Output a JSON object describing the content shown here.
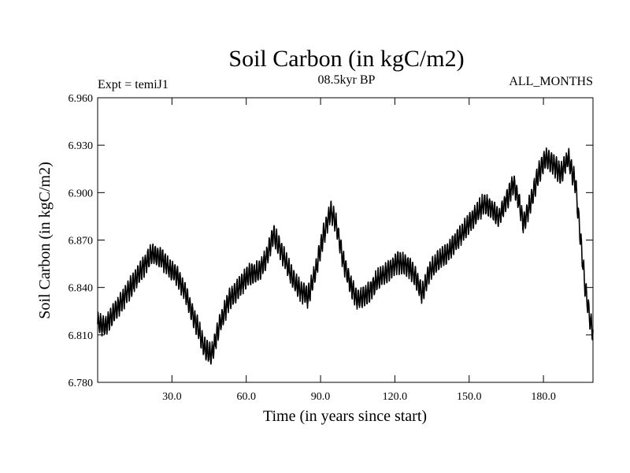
{
  "chart_data": {
    "type": "line",
    "title": "Soil Carbon (in kgC/m2)",
    "subtitle_left": "Expt = temiJ1",
    "subtitle_center": "08.5kyr BP",
    "subtitle_right": "ALL_MONTHS",
    "xlabel": "Time (in years since start)",
    "ylabel": "Soil Carbon (in kgC/m2)",
    "xlim": [
      0,
      200
    ],
    "ylim": [
      6.78,
      6.96
    ],
    "xticks": [
      30,
      60,
      90,
      120,
      150,
      180
    ],
    "xtick_labels": [
      "30.0",
      "60.0",
      "90.0",
      "120.0",
      "150.0",
      "180.0"
    ],
    "yticks": [
      6.78,
      6.81,
      6.84,
      6.87,
      6.9,
      6.93,
      6.96
    ],
    "ytick_labels": [
      "6.780",
      "6.810",
      "6.840",
      "6.870",
      "6.900",
      "6.930",
      "6.960"
    ],
    "grid": false,
    "series": [
      {
        "name": "Soil Carbon",
        "color": "#000000",
        "seasonal_amplitude": 0.006,
        "x": [
          0,
          3,
          6,
          10,
          14,
          18,
          22,
          26,
          29,
          32,
          35,
          38,
          41,
          43,
          46,
          49,
          53,
          57,
          61,
          65,
          68,
          71,
          75,
          79,
          82,
          85,
          88,
          91,
          94,
          96,
          99,
          102,
          105,
          109,
          113,
          117,
          121,
          125,
          128,
          131,
          134,
          138,
          142,
          146,
          150,
          153,
          156,
          159,
          162,
          165,
          168,
          170,
          172,
          175,
          178,
          181,
          184,
          187,
          190,
          193,
          195,
          197,
          199,
          200
        ],
        "y": [
          6.818,
          6.815,
          6.823,
          6.832,
          6.842,
          6.852,
          6.862,
          6.858,
          6.852,
          6.848,
          6.838,
          6.825,
          6.812,
          6.802,
          6.797,
          6.815,
          6.832,
          6.84,
          6.848,
          6.85,
          6.858,
          6.874,
          6.86,
          6.845,
          6.838,
          6.834,
          6.85,
          6.872,
          6.888,
          6.882,
          6.858,
          6.842,
          6.832,
          6.836,
          6.845,
          6.85,
          6.856,
          6.854,
          6.848,
          6.836,
          6.85,
          6.858,
          6.863,
          6.872,
          6.88,
          6.887,
          6.893,
          6.89,
          6.884,
          6.895,
          6.906,
          6.895,
          6.88,
          6.895,
          6.912,
          6.922,
          6.918,
          6.912,
          6.922,
          6.905,
          6.87,
          6.838,
          6.818,
          6.812
        ]
      }
    ]
  }
}
